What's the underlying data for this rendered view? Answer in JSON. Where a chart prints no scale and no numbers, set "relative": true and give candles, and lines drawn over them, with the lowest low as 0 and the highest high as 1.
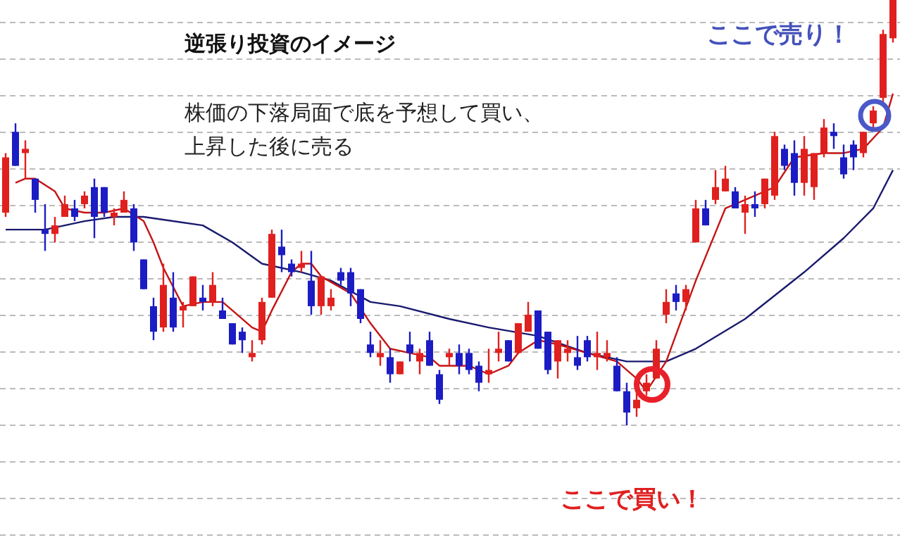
{
  "chart_data": {
    "type": "candlestick",
    "relative": true,
    "title": "逆張り投資のイメージ",
    "subtitle": "株価の下落局面で底を予想して買い、上昇した後に売る",
    "annotations": [
      "ここで売り！",
      "ここで買い！"
    ],
    "grid": "y",
    "categories": [
      null,
      null,
      null,
      null,
      null,
      null,
      null,
      null,
      null,
      null,
      null,
      null,
      null,
      null,
      null,
      null,
      null,
      null,
      null,
      null,
      null,
      null,
      null,
      null,
      null,
      null,
      null,
      null,
      null,
      null,
      null,
      null,
      null,
      null,
      null,
      null,
      null,
      null,
      null,
      null,
      null,
      null,
      null,
      null,
      null,
      null,
      null,
      null,
      null,
      null,
      null,
      null,
      null,
      null,
      null,
      null,
      null,
      null,
      null,
      null,
      null,
      null,
      null,
      null,
      null,
      null,
      null,
      null,
      null,
      null,
      null,
      null,
      null,
      null,
      null,
      null,
      null,
      null,
      null,
      null,
      null,
      null,
      null,
      null,
      null,
      null,
      null,
      null,
      null,
      null,
      null
    ],
    "ohlc": [
      [
        0.5,
        0.64,
        0.49,
        0.63
      ],
      [
        0.69,
        0.71,
        0.61,
        0.61
      ],
      [
        0.64,
        0.67,
        0.58,
        0.65
      ],
      [
        0.58,
        0.58,
        0.5,
        0.53
      ],
      [
        0.46,
        0.52,
        0.41,
        0.45
      ],
      [
        0.45,
        0.49,
        0.43,
        0.47
      ],
      [
        0.49,
        0.54,
        0.49,
        0.52
      ],
      [
        0.51,
        0.53,
        0.48,
        0.49
      ],
      [
        0.52,
        0.55,
        0.51,
        0.54
      ],
      [
        0.56,
        0.58,
        0.44,
        0.49
      ],
      [
        0.56,
        0.56,
        0.49,
        0.5
      ],
      [
        0.49,
        0.51,
        0.47,
        0.5
      ],
      [
        0.5,
        0.55,
        0.5,
        0.53
      ],
      [
        0.51,
        0.52,
        0.41,
        0.43
      ],
      [
        0.39,
        0.39,
        0.32,
        0.32
      ],
      [
        0.28,
        0.3,
        0.2,
        0.22
      ],
      [
        0.23,
        0.38,
        0.22,
        0.33
      ],
      [
        0.3,
        0.36,
        0.22,
        0.23
      ],
      [
        0.27,
        0.29,
        0.23,
        0.28
      ],
      [
        0.28,
        0.35,
        0.28,
        0.35
      ],
      [
        0.3,
        0.33,
        0.27,
        0.29
      ],
      [
        0.29,
        0.36,
        0.28,
        0.33
      ],
      [
        0.27,
        0.3,
        0.25,
        0.25
      ],
      [
        0.24,
        0.24,
        0.19,
        0.19
      ],
      [
        0.22,
        0.23,
        0.17,
        0.2
      ],
      [
        0.16,
        0.2,
        0.15,
        0.17
      ],
      [
        0.2,
        0.3,
        0.19,
        0.29
      ],
      [
        0.3,
        0.46,
        0.3,
        0.45
      ],
      [
        0.42,
        0.46,
        0.36,
        0.4
      ],
      [
        0.38,
        0.39,
        0.35,
        0.36
      ],
      [
        0.37,
        0.41,
        0.36,
        0.38
      ],
      [
        0.34,
        0.41,
        0.26,
        0.28
      ],
      [
        0.28,
        0.35,
        0.26,
        0.35
      ],
      [
        0.28,
        0.32,
        0.27,
        0.3
      ],
      [
        0.36,
        0.37,
        0.33,
        0.34
      ],
      [
        0.36,
        0.37,
        0.28,
        0.31
      ],
      [
        0.32,
        0.32,
        0.24,
        0.25
      ],
      [
        0.19,
        0.22,
        0.16,
        0.17
      ],
      [
        0.16,
        0.2,
        0.14,
        0.17
      ],
      [
        0.16,
        0.18,
        0.1,
        0.12
      ],
      [
        0.12,
        0.15,
        0.12,
        0.15
      ],
      [
        0.19,
        0.22,
        0.15,
        0.17
      ],
      [
        0.15,
        0.18,
        0.12,
        0.17
      ],
      [
        0.2,
        0.22,
        0.14,
        0.14
      ],
      [
        0.12,
        0.13,
        0.05,
        0.06
      ],
      [
        0.16,
        0.18,
        0.14,
        0.17
      ],
      [
        0.17,
        0.19,
        0.12,
        0.14
      ],
      [
        0.17,
        0.18,
        0.12,
        0.13
      ],
      [
        0.14,
        0.15,
        0.08,
        0.1
      ],
      [
        0.12,
        0.18,
        0.1,
        0.13
      ],
      [
        0.17,
        0.22,
        0.15,
        0.18
      ],
      [
        0.2,
        0.2,
        0.15,
        0.15
      ],
      [
        0.17,
        0.24,
        0.17,
        0.24
      ],
      [
        0.22,
        0.29,
        0.22,
        0.26
      ],
      [
        0.27,
        0.27,
        0.18,
        0.18
      ],
      [
        0.22,
        0.22,
        0.12,
        0.13
      ],
      [
        0.15,
        0.2,
        0.11,
        0.2
      ],
      [
        0.17,
        0.2,
        0.15,
        0.18
      ],
      [
        0.16,
        0.21,
        0.13,
        0.14
      ],
      [
        0.2,
        0.21,
        0.15,
        0.16
      ],
      [
        0.16,
        0.22,
        0.13,
        0.17
      ],
      [
        0.16,
        0.2,
        0.15,
        0.17
      ],
      [
        0.14,
        0.16,
        0.08,
        0.08
      ],
      [
        0.08,
        0.1,
        0.0,
        0.03
      ],
      [
        0.04,
        0.08,
        0.02,
        0.06
      ],
      [
        0.08,
        0.12,
        0.07,
        0.1
      ],
      [
        0.11,
        0.2,
        0.11,
        0.18
      ],
      [
        0.26,
        0.32,
        0.24,
        0.29
      ],
      [
        0.31,
        0.33,
        0.27,
        0.29
      ],
      [
        0.29,
        0.33,
        0.27,
        0.32
      ],
      [
        0.43,
        0.53,
        0.43,
        0.51
      ],
      [
        0.51,
        0.53,
        0.47,
        0.47
      ],
      [
        0.53,
        0.6,
        0.52,
        0.56
      ],
      [
        0.55,
        0.61,
        0.55,
        0.58
      ],
      [
        0.55,
        0.56,
        0.51,
        0.51
      ],
      [
        0.5,
        0.54,
        0.45,
        0.52
      ],
      [
        0.52,
        0.55,
        0.49,
        0.51
      ],
      [
        0.52,
        0.58,
        0.51,
        0.58
      ],
      [
        0.54,
        0.69,
        0.53,
        0.68
      ],
      [
        0.65,
        0.66,
        0.6,
        0.61
      ],
      [
        0.64,
        0.67,
        0.54,
        0.57
      ],
      [
        0.57,
        0.68,
        0.54,
        0.65
      ],
      [
        0.56,
        0.64,
        0.53,
        0.64
      ],
      [
        0.64,
        0.72,
        0.63,
        0.7
      ],
      [
        0.69,
        0.71,
        0.65,
        0.68
      ],
      [
        0.63,
        0.66,
        0.58,
        0.59
      ],
      [
        0.66,
        0.67,
        0.6,
        0.63
      ],
      [
        0.64,
        0.69,
        0.63,
        0.69
      ],
      [
        0.71,
        0.75,
        0.7,
        0.74
      ],
      [
        0.77,
        0.93,
        0.76,
        0.92
      ],
      [
        0.91,
        1.0,
        0.9,
        1.0
      ]
    ],
    "colors": [
      "#e0201e",
      "#1c1cc4",
      "#e0201e",
      "#1c1cc4",
      "#1c1cc4",
      "#e0201e",
      "#e0201e",
      "#1c1cc4",
      "#e0201e",
      "#1c1cc4",
      "#1c1cc4",
      "#e0201e",
      "#e0201e",
      "#1c1cc4",
      "#1c1cc4",
      "#1c1cc4",
      "#e0201e",
      "#1c1cc4",
      "#e0201e",
      "#e0201e",
      "#1c1cc4",
      "#e0201e",
      "#1c1cc4",
      "#1c1cc4",
      "#1c1cc4",
      "#e0201e",
      "#e0201e",
      "#e0201e",
      "#1c1cc4",
      "#1c1cc4",
      "#e0201e",
      "#1c1cc4",
      "#e0201e",
      "#e0201e",
      "#1c1cc4",
      "#1c1cc4",
      "#1c1cc4",
      "#1c1cc4",
      "#e0201e",
      "#1c1cc4",
      "#e0201e",
      "#1c1cc4",
      "#e0201e",
      "#1c1cc4",
      "#1c1cc4",
      "#e0201e",
      "#1c1cc4",
      "#1c1cc4",
      "#1c1cc4",
      "#e0201e",
      "#e0201e",
      "#1c1cc4",
      "#e0201e",
      "#e0201e",
      "#1c1cc4",
      "#1c1cc4",
      "#e0201e",
      "#e0201e",
      "#1c1cc4",
      "#1c1cc4",
      "#e0201e",
      "#e0201e",
      "#1c1cc4",
      "#1c1cc4",
      "#e0201e",
      "#e0201e",
      "#e0201e",
      "#e0201e",
      "#1c1cc4",
      "#e0201e",
      "#e0201e",
      "#1c1cc4",
      "#e0201e",
      "#e0201e",
      "#1c1cc4",
      "#e0201e",
      "#1c1cc4",
      "#e0201e",
      "#e0201e",
      "#1c1cc4",
      "#1c1cc4",
      "#e0201e",
      "#e0201e",
      "#e0201e",
      "#1c1cc4",
      "#1c1cc4",
      "#1c1cc4",
      "#e0201e",
      "#e0201e",
      "#e0201e",
      "#e0201e"
    ],
    "series": [
      {
        "type": "line",
        "color": "#1a1a6e",
        "values": [
          0.46,
          null,
          null,
          null,
          0.46,
          null,
          null,
          null,
          0.48,
          null,
          null,
          0.49,
          null,
          null,
          0.49,
          null,
          null,
          null,
          null,
          null,
          0.47,
          null,
          null,
          0.43,
          null,
          null,
          0.38,
          null,
          null,
          null,
          0.36,
          null,
          null,
          0.34,
          null,
          null,
          null,
          0.29,
          null,
          null,
          0.28,
          null,
          null,
          null,
          null,
          0.25,
          null,
          null,
          null,
          0.23,
          null,
          null,
          null,
          null,
          0.21,
          null,
          null,
          null,
          null,
          0.17,
          null,
          null,
          null,
          0.15,
          null,
          null,
          null,
          0.15,
          null,
          null,
          0.18,
          null,
          null,
          null,
          null,
          0.25,
          null,
          null,
          null,
          null,
          null,
          0.36,
          null,
          null,
          null,
          0.44,
          null,
          null,
          0.51,
          null,
          0.6
        ]
      },
      {
        "type": "line",
        "color": "#c41414",
        "values": [
          null,
          0.57,
          0.58,
          0.58,
          null,
          0.55,
          0.51,
          null,
          0.5,
          null,
          0.5,
          null,
          0.51,
          null,
          0.48,
          0.43,
          0.37,
          null,
          0.28,
          null,
          0.29,
          null,
          0.29,
          0.27,
          null,
          0.23,
          0.22,
          0.27,
          null,
          0.36,
          0.38,
          0.38,
          0.35,
          null,
          null,
          0.31,
          null,
          0.24,
          null,
          0.18,
          null,
          0.17,
          null,
          0.16,
          0.14,
          null,
          null,
          0.14,
          null,
          0.12,
          null,
          0.14,
          0.17,
          null,
          0.2,
          null,
          0.19,
          null,
          null,
          0.17,
          null,
          null,
          0.15,
          null,
          0.11,
          0.08,
          null,
          0.15,
          null,
          null,
          0.34,
          null,
          null,
          0.51,
          null,
          0.53,
          null,
          null,
          0.56,
          null,
          0.63,
          null,
          null,
          0.64,
          null,
          0.64,
          null,
          0.65,
          null,
          0.7,
          0.78
        ]
      }
    ]
  }
}
